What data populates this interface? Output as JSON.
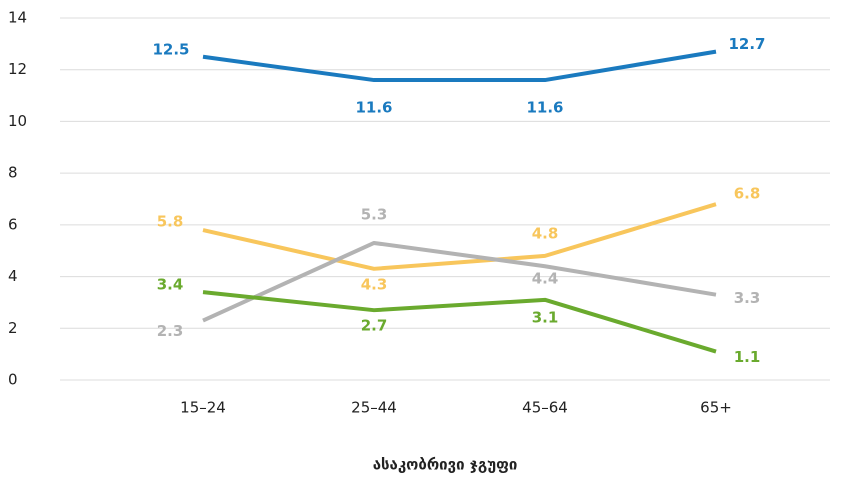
{
  "chart_data": {
    "type": "line",
    "x_label": "ასაკობრივი ჯგუფი",
    "categories": [
      "15–24",
      "25–44",
      "45–64",
      "65+"
    ],
    "series": [
      {
        "color": "#1a7abf",
        "values": [
          12.5,
          11.6,
          11.6,
          12.7
        ]
      },
      {
        "color": "#f8c65c",
        "values": [
          5.8,
          4.3,
          4.8,
          6.8
        ]
      },
      {
        "color": "#b3b3b3",
        "values": [
          2.3,
          5.3,
          4.4,
          3.3
        ]
      },
      {
        "color": "#6aaa2e",
        "values": [
          3.4,
          2.7,
          3.1,
          1.1
        ]
      }
    ],
    "ylim": [
      0,
      14
    ],
    "yticks": [
      0,
      2,
      4,
      6,
      8,
      10,
      12,
      14
    ],
    "grid": true
  }
}
